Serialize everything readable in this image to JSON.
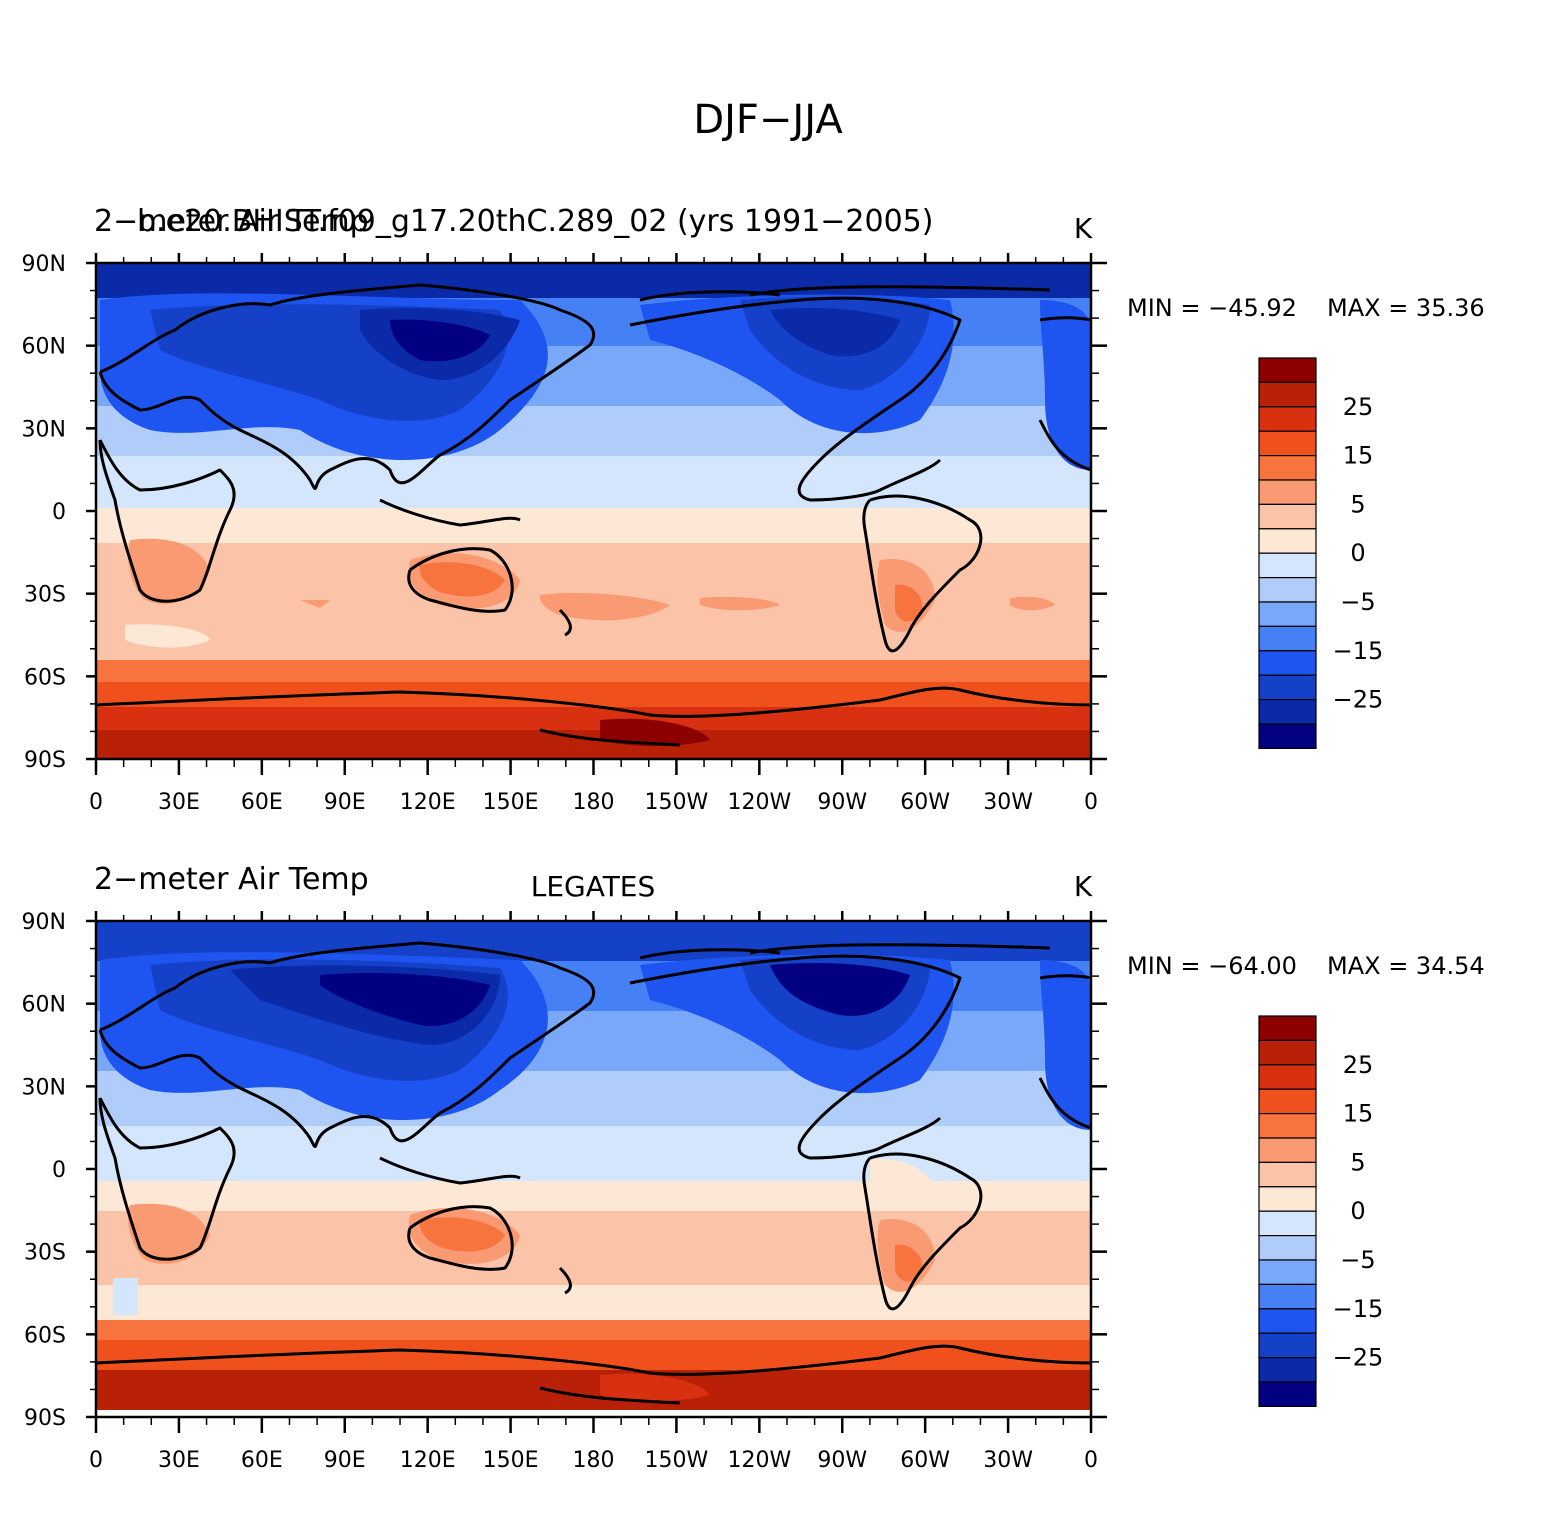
{
  "figure": {
    "title": "DJF−JJA"
  },
  "colors": {
    "levels": [
      -30,
      -25,
      -20,
      -15,
      -10,
      -5,
      0,
      5,
      10,
      15,
      20,
      25,
      30
    ],
    "fills": [
      "#000080",
      "#0a2aa8",
      "#1540c8",
      "#1e55f0",
      "#4680f5",
      "#7aa8f8",
      "#b0ccf8",
      "#d4e6fc",
      "#fde8d6",
      "#fbc4a8",
      "#f99a72",
      "#f7743e",
      "#f0501c",
      "#d83010",
      "#b82008",
      "#8c0000"
    ]
  },
  "axes": {
    "lat_ticks": [
      "90N",
      "60N",
      "30N",
      "0",
      "30S",
      "60S",
      "90S"
    ],
    "lon_ticks": [
      "0",
      "30E",
      "60E",
      "90E",
      "120E",
      "150E",
      "180",
      "150W",
      "120W",
      "90W",
      "60W",
      "30W",
      "0"
    ]
  },
  "panels": [
    {
      "left_title": "2−meter Air Temp",
      "center_title": "b.e20.BHIST.f09_g17.20thC.289_02 (yrs 1991−2005)",
      "units": "K",
      "min_label": "MIN = −45.92",
      "max_label": "MAX =  35.36",
      "colorbar_labels": [
        "25",
        "15",
        "5",
        "0",
        "−5",
        "−15",
        "−25"
      ]
    },
    {
      "left_title": "2−meter Air Temp",
      "center_title": "LEGATES",
      "units": "K",
      "min_label": "MIN = −64.00",
      "max_label": "MAX =  34.54",
      "colorbar_labels": [
        "25",
        "15",
        "5",
        "0",
        "−5",
        "−15",
        "−25"
      ]
    }
  ]
}
